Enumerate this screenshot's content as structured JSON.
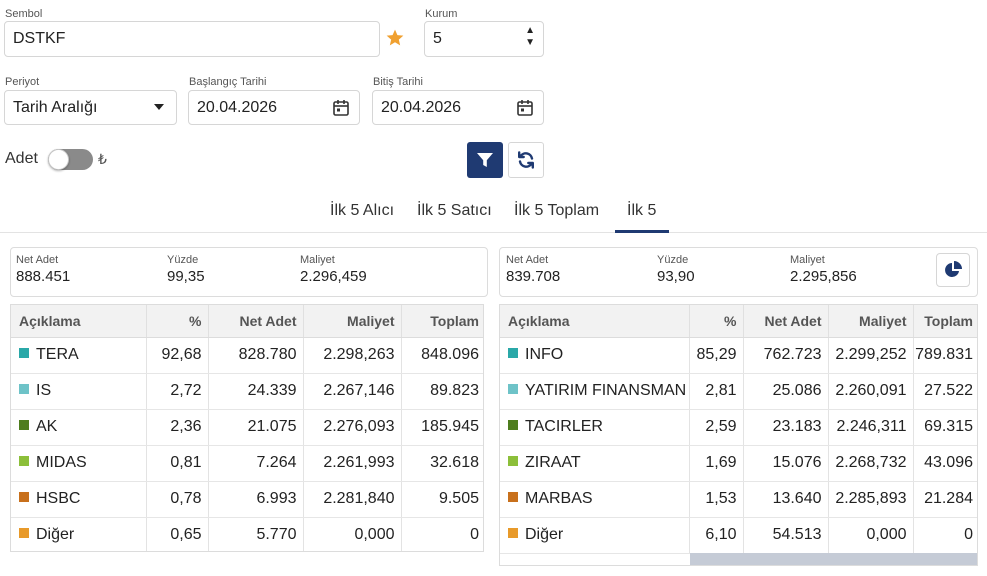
{
  "form": {
    "sembol_label": "Sembol",
    "sembol_value": "DSTKF",
    "kurum_label": "Kurum",
    "kurum_value": "5",
    "periyot_label": "Periyot",
    "periyot_value": "Tarih Aralığı",
    "baslangic_label": "Başlangıç Tarihi",
    "baslangic_value": "20.04.2026",
    "bitis_label": "Bitiş Tarihi",
    "bitis_value": "20.04.2026",
    "adet_label": "Adet",
    "currency_symbol": "₺"
  },
  "tabs": [
    "İlk 5 Alıcı",
    "İlk 5 Satıcı",
    "İlk 5 Toplam",
    "İlk 5"
  ],
  "active_tab": "İlk 5",
  "colors": {
    "accent": "#1f3a72",
    "star": "#f0a030"
  },
  "summary_labels": {
    "net_adet": "Net Adet",
    "yuzde": "Yüzde",
    "maliyet": "Maliyet"
  },
  "columns": [
    "Açıklama",
    "%",
    "Net Adet",
    "Maliyet",
    "Toplam"
  ],
  "left": {
    "summary": {
      "net_adet": "888.451",
      "yuzde": "99,35",
      "maliyet": "2.296,459"
    },
    "rows": [
      {
        "name": "TERA",
        "color": "#2aa8a8",
        "pct": "92,68",
        "net": "828.780",
        "cost": "2.298,263",
        "total": "848.096"
      },
      {
        "name": "IS",
        "color": "#6ec3c8",
        "pct": "2,72",
        "net": "24.339",
        "cost": "2.267,146",
        "total": "89.823"
      },
      {
        "name": "AK",
        "color": "#4e7d1e",
        "pct": "2,36",
        "net": "21.075",
        "cost": "2.276,093",
        "total": "185.945"
      },
      {
        "name": "MIDAS",
        "color": "#8cbf3a",
        "pct": "0,81",
        "net": "7.264",
        "cost": "2.261,993",
        "total": "32.618"
      },
      {
        "name": "HSBC",
        "color": "#c8701c",
        "pct": "0,78",
        "net": "6.993",
        "cost": "2.281,840",
        "total": "9.505"
      },
      {
        "name": "Diğer",
        "color": "#e89a2a",
        "pct": "0,65",
        "net": "5.770",
        "cost": "0,000",
        "total": "0"
      }
    ]
  },
  "right": {
    "summary": {
      "net_adet": "839.708",
      "yuzde": "93,90",
      "maliyet": "2.295,856"
    },
    "rows": [
      {
        "name": "INFO",
        "color": "#2aa8a8",
        "pct": "85,29",
        "net": "762.723",
        "cost": "2.299,252",
        "total": "789.831"
      },
      {
        "name": "YATIRIM FINANSMAN",
        "color": "#6ec3c8",
        "pct": "2,81",
        "net": "25.086",
        "cost": "2.260,091",
        "total": "27.522"
      },
      {
        "name": "TACIRLER",
        "color": "#4e7d1e",
        "pct": "2,59",
        "net": "23.183",
        "cost": "2.246,311",
        "total": "69.315"
      },
      {
        "name": "ZIRAAT",
        "color": "#8cbf3a",
        "pct": "1,69",
        "net": "15.076",
        "cost": "2.268,732",
        "total": "43.096"
      },
      {
        "name": "MARBAS",
        "color": "#c8701c",
        "pct": "1,53",
        "net": "13.640",
        "cost": "2.285,893",
        "total": "21.284"
      },
      {
        "name": "Diğer",
        "color": "#e89a2a",
        "pct": "6,10",
        "net": "54.513",
        "cost": "0,000",
        "total": "0"
      }
    ]
  }
}
